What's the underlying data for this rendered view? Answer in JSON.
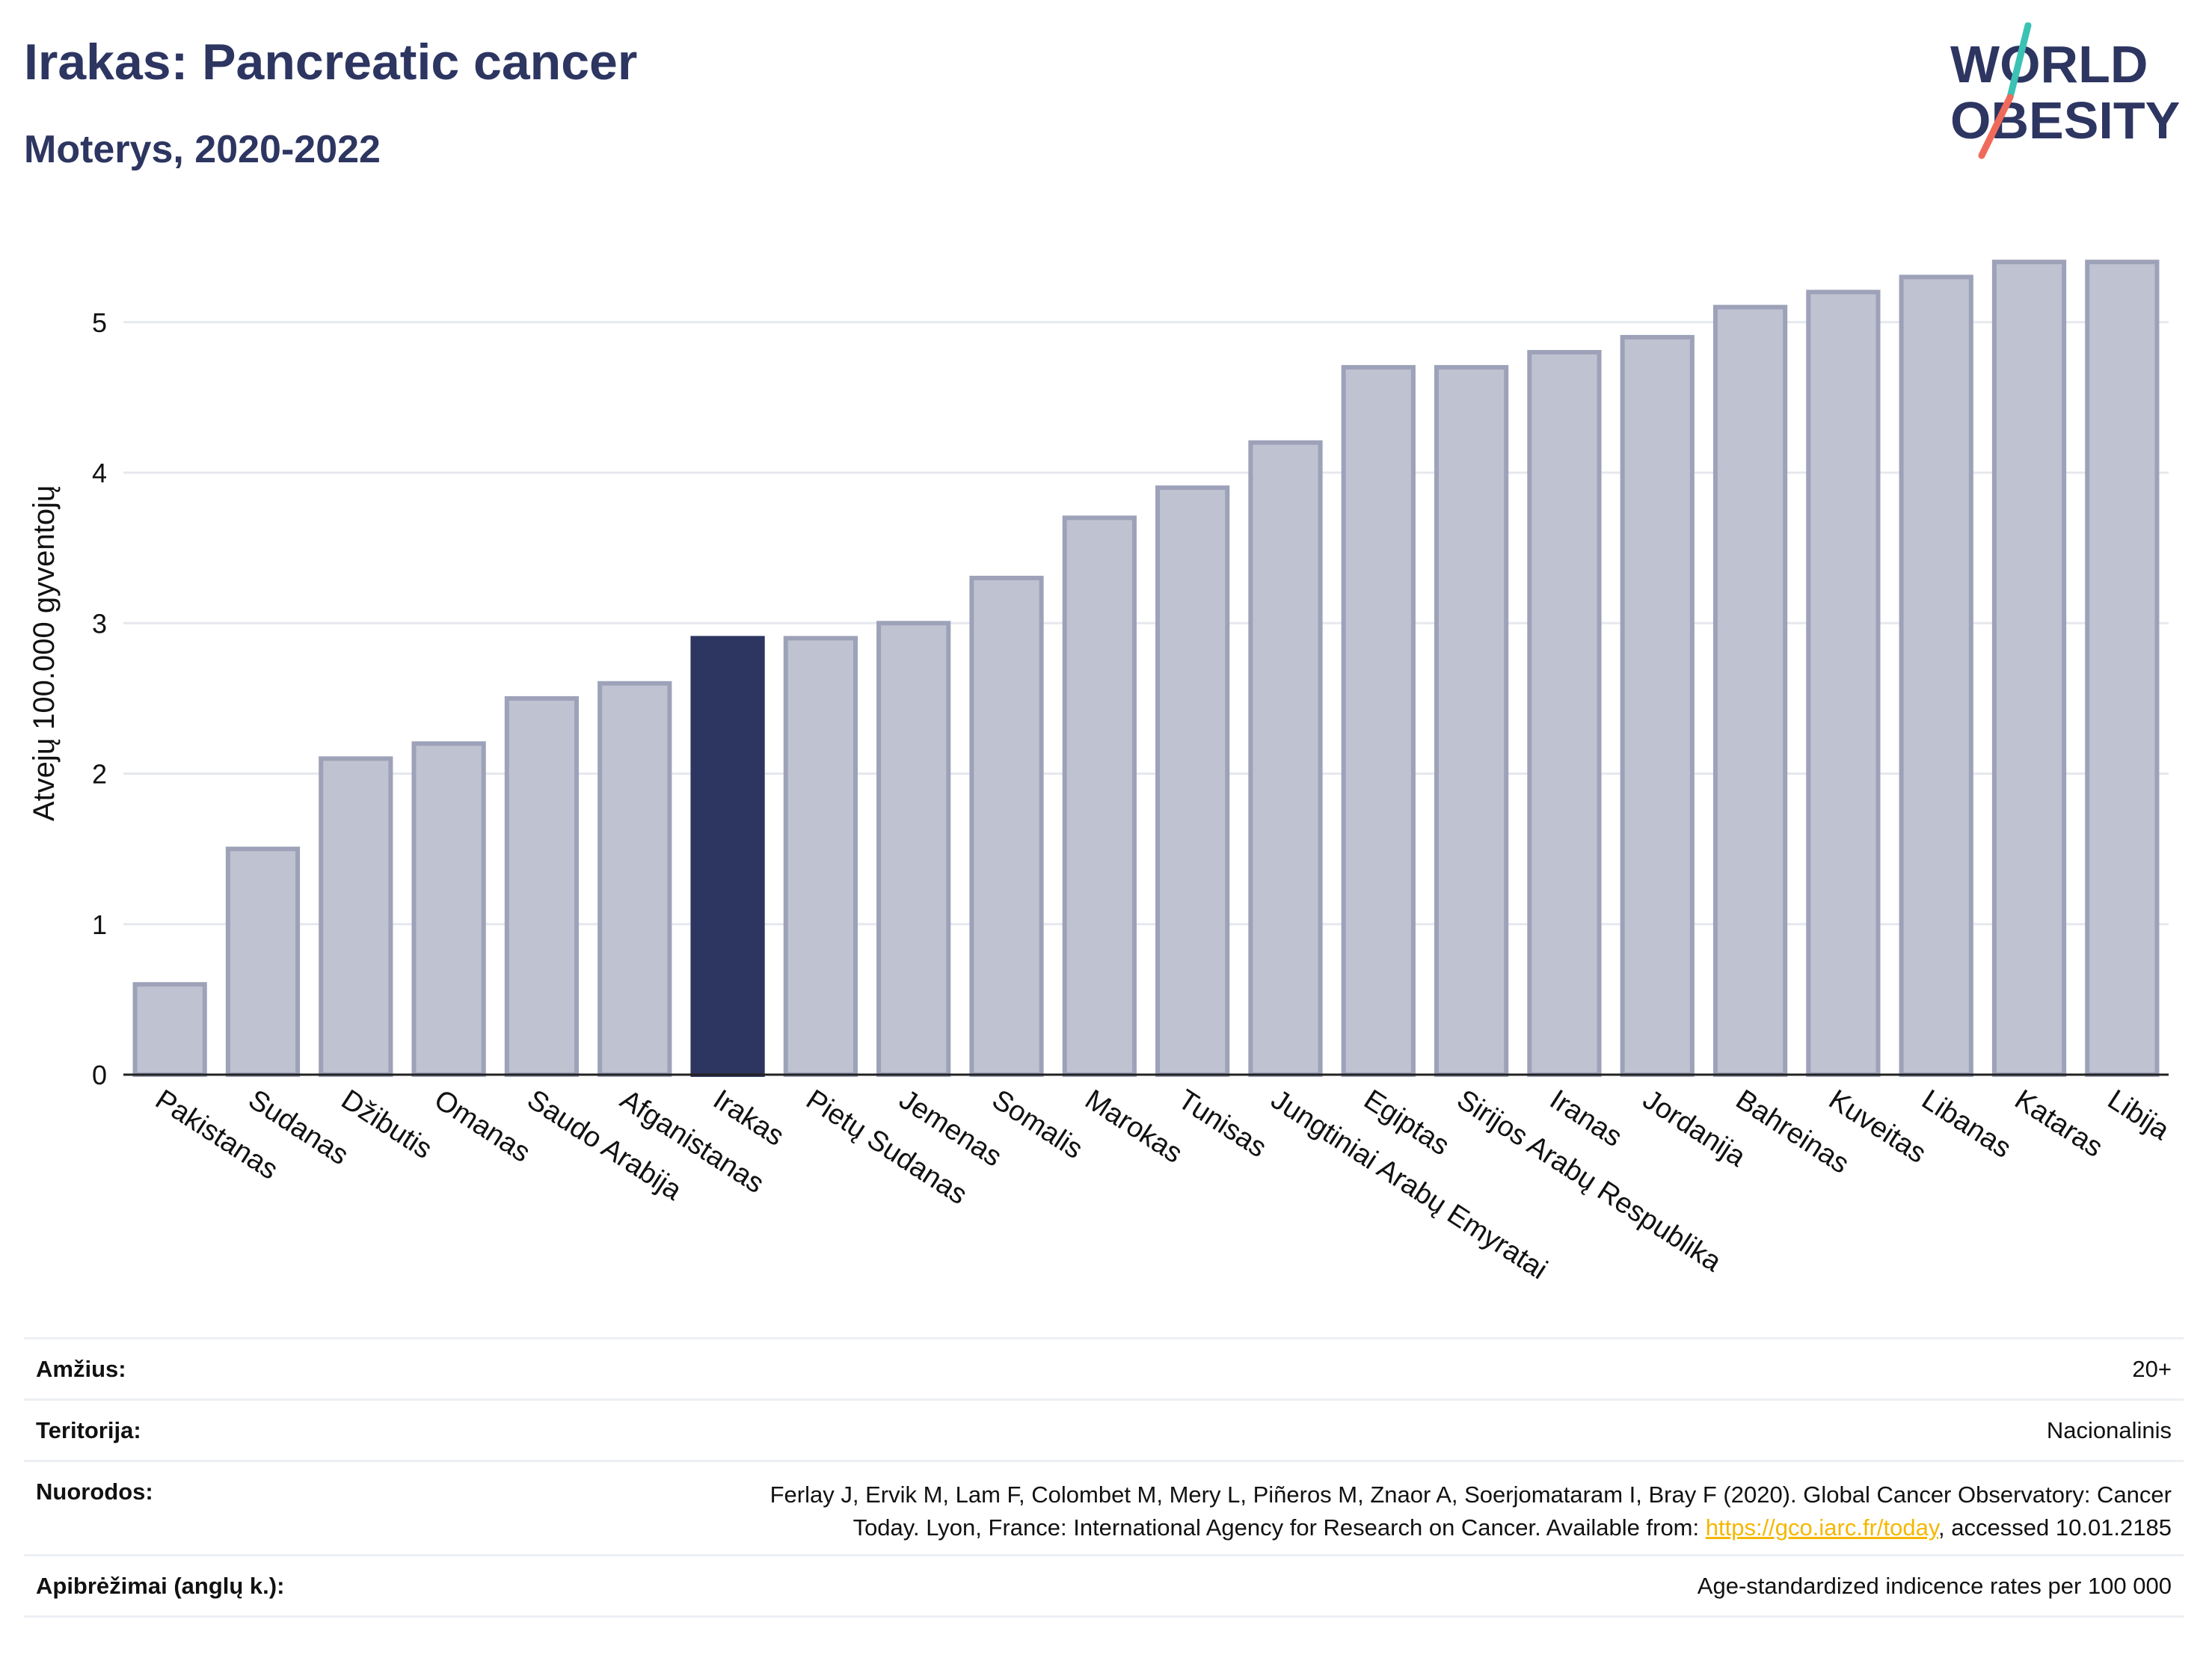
{
  "header": {
    "title": "Irakas: Pancreatic cancer",
    "subtitle": "Moterys, 2020-2022",
    "logo_text_line1": "WORLD",
    "logo_text_line2": "OBESITY"
  },
  "colors": {
    "highlight_bar": "#2d3561",
    "bar_fill": "#bfc2d0",
    "bar_border": "#9da2b9",
    "title": "#2d3561",
    "link": "#f5b700",
    "logo_teal": "#3cc2b5",
    "logo_coral": "#ef6a5a"
  },
  "chart_data": {
    "type": "bar",
    "ylabel": "Atvejų 100.000 gyventojų",
    "ylim": [
      0,
      5.6
    ],
    "yticks": [
      0,
      1,
      2,
      3,
      4,
      5
    ],
    "grid": true,
    "highlight": "Irakas",
    "categories": [
      "Pakistanas",
      "Sudanas",
      "Džibutis",
      "Omanas",
      "Saudo Arabija",
      "Afganistanas",
      "Irakas",
      "Pietų Sudanas",
      "Jemenas",
      "Somalis",
      "Marokas",
      "Tunisas",
      "Jungtiniai Arabų Emyratai",
      "Egiptas",
      "Sirijos Arabų Respublika",
      "Iranas",
      "Jordanija",
      "Bahreinas",
      "Kuveitas",
      "Libanas",
      "Kataras",
      "Libija"
    ],
    "values": [
      0.6,
      1.5,
      2.1,
      2.2,
      2.5,
      2.6,
      2.9,
      2.9,
      3.0,
      3.3,
      3.7,
      3.9,
      4.2,
      4.7,
      4.7,
      4.8,
      4.9,
      5.1,
      5.2,
      5.3,
      5.4,
      5.4
    ]
  },
  "meta": {
    "age_label": "Amžius:",
    "age_value": "20+",
    "territory_label": "Teritorija:",
    "territory_value": "Nacionalinis",
    "refs_label": "Nuorodos:",
    "refs_line1": "Ferlay J, Ervik M, Lam F, Colombet M, Mery L, Piñeros M, Znaor A, Soerjomataram I, Bray F (2020). Global Cancer Observatory: Cancer",
    "refs_line2_prefix": "Today. Lyon, France: International Agency for Research on Cancer. Available from: ",
    "refs_link": "https://gco.iarc.fr/today",
    "refs_line2_suffix": ", accessed 10.01.2185",
    "definitions_label": "Apibrėžimai (anglų k.):",
    "definitions_value": "Age-standardized indicence rates per 100 000"
  }
}
